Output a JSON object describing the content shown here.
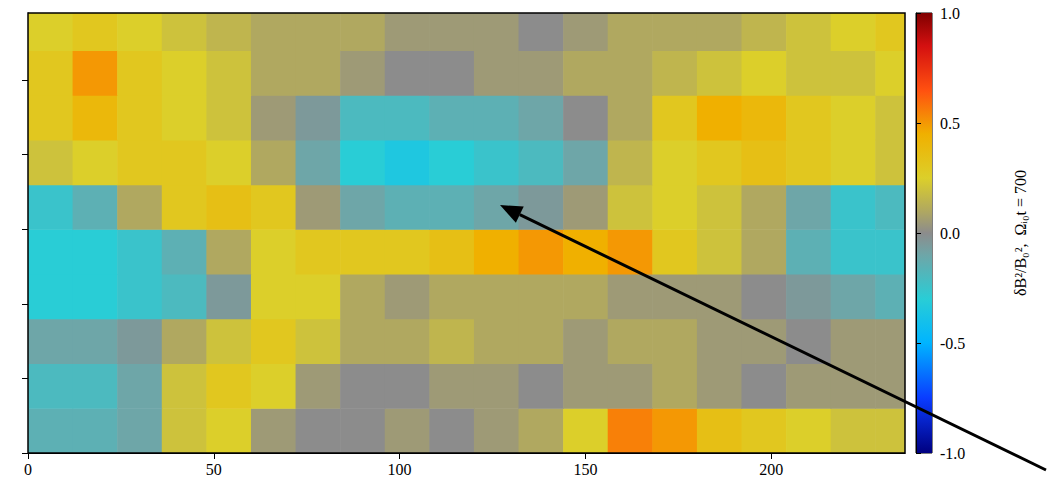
{
  "chart_data": {
    "type": "heatmap",
    "xlim": [
      0,
      236
    ],
    "xticks": [
      0,
      50,
      100,
      150,
      200
    ],
    "ylim": [
      0,
      118
    ],
    "yticks": [
      0,
      20,
      40,
      60,
      80,
      100
    ],
    "tick_labels": "x",
    "x_edges": [
      0,
      12,
      24,
      36,
      48,
      60,
      72,
      84,
      96,
      108,
      120,
      132,
      144,
      156,
      168,
      180,
      192,
      204,
      216,
      228,
      236
    ],
    "y_edges": [
      0,
      12,
      24,
      36,
      48,
      60,
      72,
      84,
      96,
      108,
      118
    ],
    "values": [
      [
        -0.15,
        -0.15,
        -0.1,
        0.2,
        0.25,
        0.05,
        0,
        0,
        0.05,
        0,
        0.05,
        0.1,
        0.25,
        0.55,
        0.5,
        0.35,
        0.3,
        0.25,
        0.2,
        0.2
      ],
      [
        -0.2,
        -0.2,
        -0.1,
        0.2,
        0.3,
        0.25,
        0.05,
        0,
        0,
        0.05,
        0.05,
        0,
        0.05,
        0.05,
        0.1,
        0.05,
        0,
        0.05,
        0.05,
        0.05
      ],
      [
        -0.1,
        -0.1,
        -0.05,
        0.1,
        0.2,
        0.3,
        0.2,
        0.1,
        0.1,
        0.15,
        0.1,
        0.1,
        0.05,
        0.1,
        0.1,
        0.05,
        0.05,
        0,
        0.05,
        0.05
      ],
      [
        -0.3,
        -0.3,
        -0.25,
        -0.2,
        -0.05,
        0.25,
        0.25,
        0.1,
        0.05,
        0.1,
        0.1,
        0.1,
        0.1,
        0.05,
        0.05,
        0.05,
        0,
        -0.05,
        -0.1,
        -0.15
      ],
      [
        -0.3,
        -0.3,
        -0.25,
        -0.15,
        0.1,
        0.25,
        0.3,
        0.3,
        0.3,
        0.35,
        0.45,
        0.5,
        0.45,
        0.5,
        0.3,
        0.2,
        0.1,
        -0.15,
        -0.25,
        -0.25
      ],
      [
        -0.25,
        -0.15,
        0.1,
        0.3,
        0.35,
        0.3,
        0.05,
        -0.1,
        -0.15,
        -0.15,
        -0.1,
        -0.05,
        0.05,
        0.2,
        0.25,
        0.2,
        0.1,
        -0.1,
        -0.25,
        -0.2
      ],
      [
        0.2,
        0.25,
        0.3,
        0.3,
        0.25,
        0.1,
        -0.1,
        -0.3,
        -0.35,
        -0.3,
        -0.25,
        -0.2,
        -0.1,
        0.15,
        0.25,
        0.3,
        0.35,
        0.3,
        0.25,
        0.2
      ],
      [
        0.3,
        0.4,
        0.3,
        0.25,
        0.2,
        0.05,
        -0.05,
        -0.2,
        -0.2,
        -0.15,
        -0.15,
        -0.1,
        0,
        0.1,
        0.3,
        0.45,
        0.4,
        0.3,
        0.25,
        0.2
      ],
      [
        0.3,
        0.5,
        0.3,
        0.25,
        0.2,
        0.1,
        0.1,
        0.05,
        0,
        0,
        0.05,
        0.05,
        0.1,
        0.1,
        0.15,
        0.2,
        0.25,
        0.2,
        0.2,
        0.25
      ],
      [
        0.25,
        0.3,
        0.25,
        0.2,
        0.15,
        0.1,
        0.1,
        0.1,
        0.05,
        0.05,
        0.05,
        0,
        0.05,
        0.1,
        0.1,
        0.1,
        0.15,
        0.2,
        0.25,
        0.3
      ]
    ],
    "colorbar_range": [
      -1,
      1
    ],
    "colorbar_ticks": [
      {
        "value": -1,
        "label": "-1.0"
      },
      {
        "value": -0.5,
        "label": "-0.5"
      },
      {
        "value": 0,
        "label": "0.0"
      },
      {
        "value": 0.5,
        "label": "0.5"
      },
      {
        "value": 1,
        "label": "1.0"
      }
    ],
    "colorbar_label": "δB²/B₀²,  Ωᵢ₀t = 700"
  }
}
